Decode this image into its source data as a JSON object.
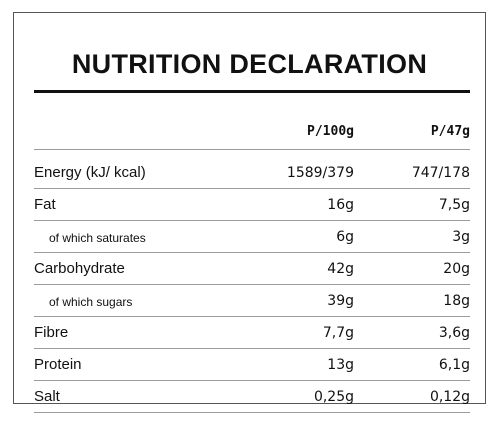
{
  "title": "NUTRITION DECLARATION",
  "columns": [
    "P/100g",
    "P/47g"
  ],
  "rows": [
    {
      "label": "Energy (kJ/ kcal)",
      "per100": "1589/379",
      "perServing": "747/178"
    },
    {
      "label": "Fat",
      "per100": "16g",
      "perServing": "7,5g"
    },
    {
      "label": "of which saturates",
      "per100": "6g",
      "perServing": "3g"
    },
    {
      "label": "Carbohydrate",
      "per100": "42g",
      "perServing": "20g"
    },
    {
      "label": "of which sugars",
      "per100": "39g",
      "perServing": "18g"
    },
    {
      "label": "Fibre",
      "per100": "7,7g",
      "perServing": "3,6g"
    },
    {
      "label": "Protein",
      "per100": "13g",
      "perServing": "6,1g"
    },
    {
      "label": "Salt",
      "per100": "0,25g",
      "perServing": "0,12g"
    }
  ]
}
